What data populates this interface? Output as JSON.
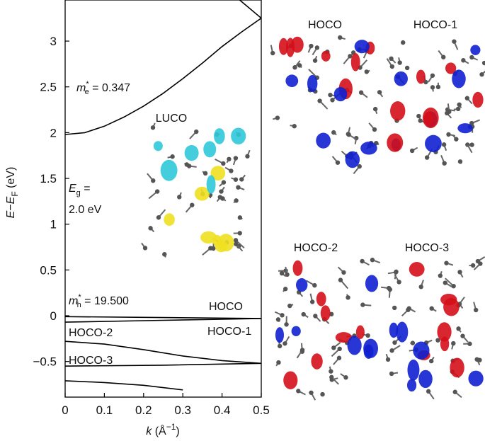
{
  "chart_data": {
    "type": "line",
    "x_label": {
      "italic": "k",
      "text": " (Å",
      "sup": "−1",
      "close": ")"
    },
    "y_label": {
      "italic": "E",
      "minus": "−",
      "italic2": "E",
      "sub": "F",
      "text": " (eV)"
    },
    "xlim": [
      0,
      0.5
    ],
    "xticks": [
      0,
      0.1,
      0.2,
      0.3,
      0.4,
      0.5
    ],
    "ylim": [
      -0.889,
      3.449
    ],
    "yticks": [
      {
        "value": -0.5,
        "label": "−0.5"
      },
      0,
      0.5,
      1,
      1.5,
      2,
      2.5,
      3
    ],
    "series": [
      {
        "color": "#000000",
        "x": [
          0,
          0.05,
          0.1,
          0.15,
          0.2,
          0.25,
          0.3,
          0.35,
          0.4,
          0.45,
          0.5
        ],
        "values": [
          1.98,
          2.0,
          2.07,
          2.17,
          2.29,
          2.43,
          2.59,
          2.76,
          2.94,
          3.1,
          3.25
        ]
      },
      {
        "color": "#000000",
        "x": [
          0.445,
          0.5
        ],
        "values": [
          3.449,
          3.25
        ]
      },
      {
        "color": "#000000",
        "x": [
          0,
          0.25,
          0.5
        ],
        "values": [
          -0.01,
          -0.02,
          -0.03
        ]
      },
      {
        "color": "#000000",
        "x": [
          0,
          0.25,
          0.5
        ],
        "values": [
          -0.07,
          -0.05,
          -0.03
        ]
      },
      {
        "color": "#000000",
        "x": [
          0,
          0.1,
          0.2,
          0.3,
          0.4,
          0.5
        ],
        "values": [
          -0.28,
          -0.31,
          -0.37,
          -0.44,
          -0.49,
          -0.52
        ]
      },
      {
        "color": "#000000",
        "x": [
          0,
          0.25,
          0.5
        ],
        "values": [
          -0.55,
          -0.54,
          -0.52
        ]
      },
      {
        "color": "#000000",
        "x": [
          0,
          0.1,
          0.2,
          0.3
        ],
        "values": [
          -0.71,
          -0.73,
          -0.76,
          -0.81
        ]
      }
    ],
    "annotations": {
      "me": {
        "italic": "m",
        "sup": "*",
        "sub": "e",
        "text": " = 0.347"
      },
      "mh": {
        "italic": "m",
        "sup": "*",
        "sub": "h",
        "text": " = 19.500"
      },
      "eg": {
        "italic": "E",
        "sub": "g",
        "text": " =",
        "line2": "2.0 eV"
      },
      "band_labels": [
        "HOCO",
        "HOCO-1",
        "HOCO-2",
        "HOCO-3"
      ]
    },
    "orbital_panels": [
      "LUCO",
      "HOCO",
      "HOCO-1",
      "HOCO-2",
      "HOCO-3"
    ]
  }
}
